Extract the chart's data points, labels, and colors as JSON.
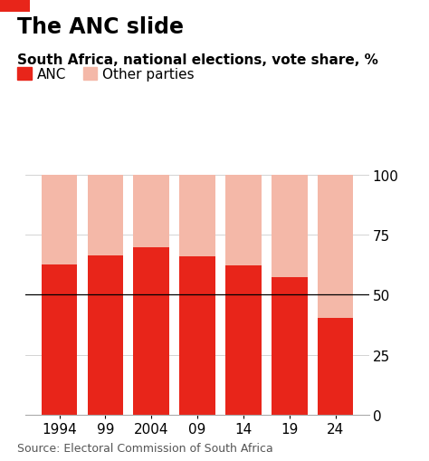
{
  "title": "The ANC slide",
  "subtitle": "South Africa, national elections, vote share, %",
  "years": [
    "1994",
    "99",
    "2004",
    "09",
    "14",
    "19",
    "24"
  ],
  "anc_values": [
    62.7,
    66.4,
    69.7,
    65.9,
    62.2,
    57.5,
    40.2
  ],
  "total": 100,
  "anc_color": "#e8251a",
  "other_color": "#f4b8a8",
  "bar_width": 0.78,
  "ylim": [
    0,
    100
  ],
  "yticks": [
    0,
    25,
    50,
    75,
    100
  ],
  "source": "Source: Electoral Commission of South Africa",
  "legend_anc": "ANC",
  "legend_other": "Other parties",
  "bg_color": "#ffffff",
  "title_color": "#000000",
  "subtitle_color": "#000000",
  "source_color": "#555555",
  "title_fontsize": 17,
  "subtitle_fontsize": 11,
  "tick_fontsize": 11,
  "source_fontsize": 9,
  "legend_fontsize": 11,
  "header_bar_color": "#e8251a",
  "gridline_color": "#cccccc",
  "hline50_color": "#000000"
}
